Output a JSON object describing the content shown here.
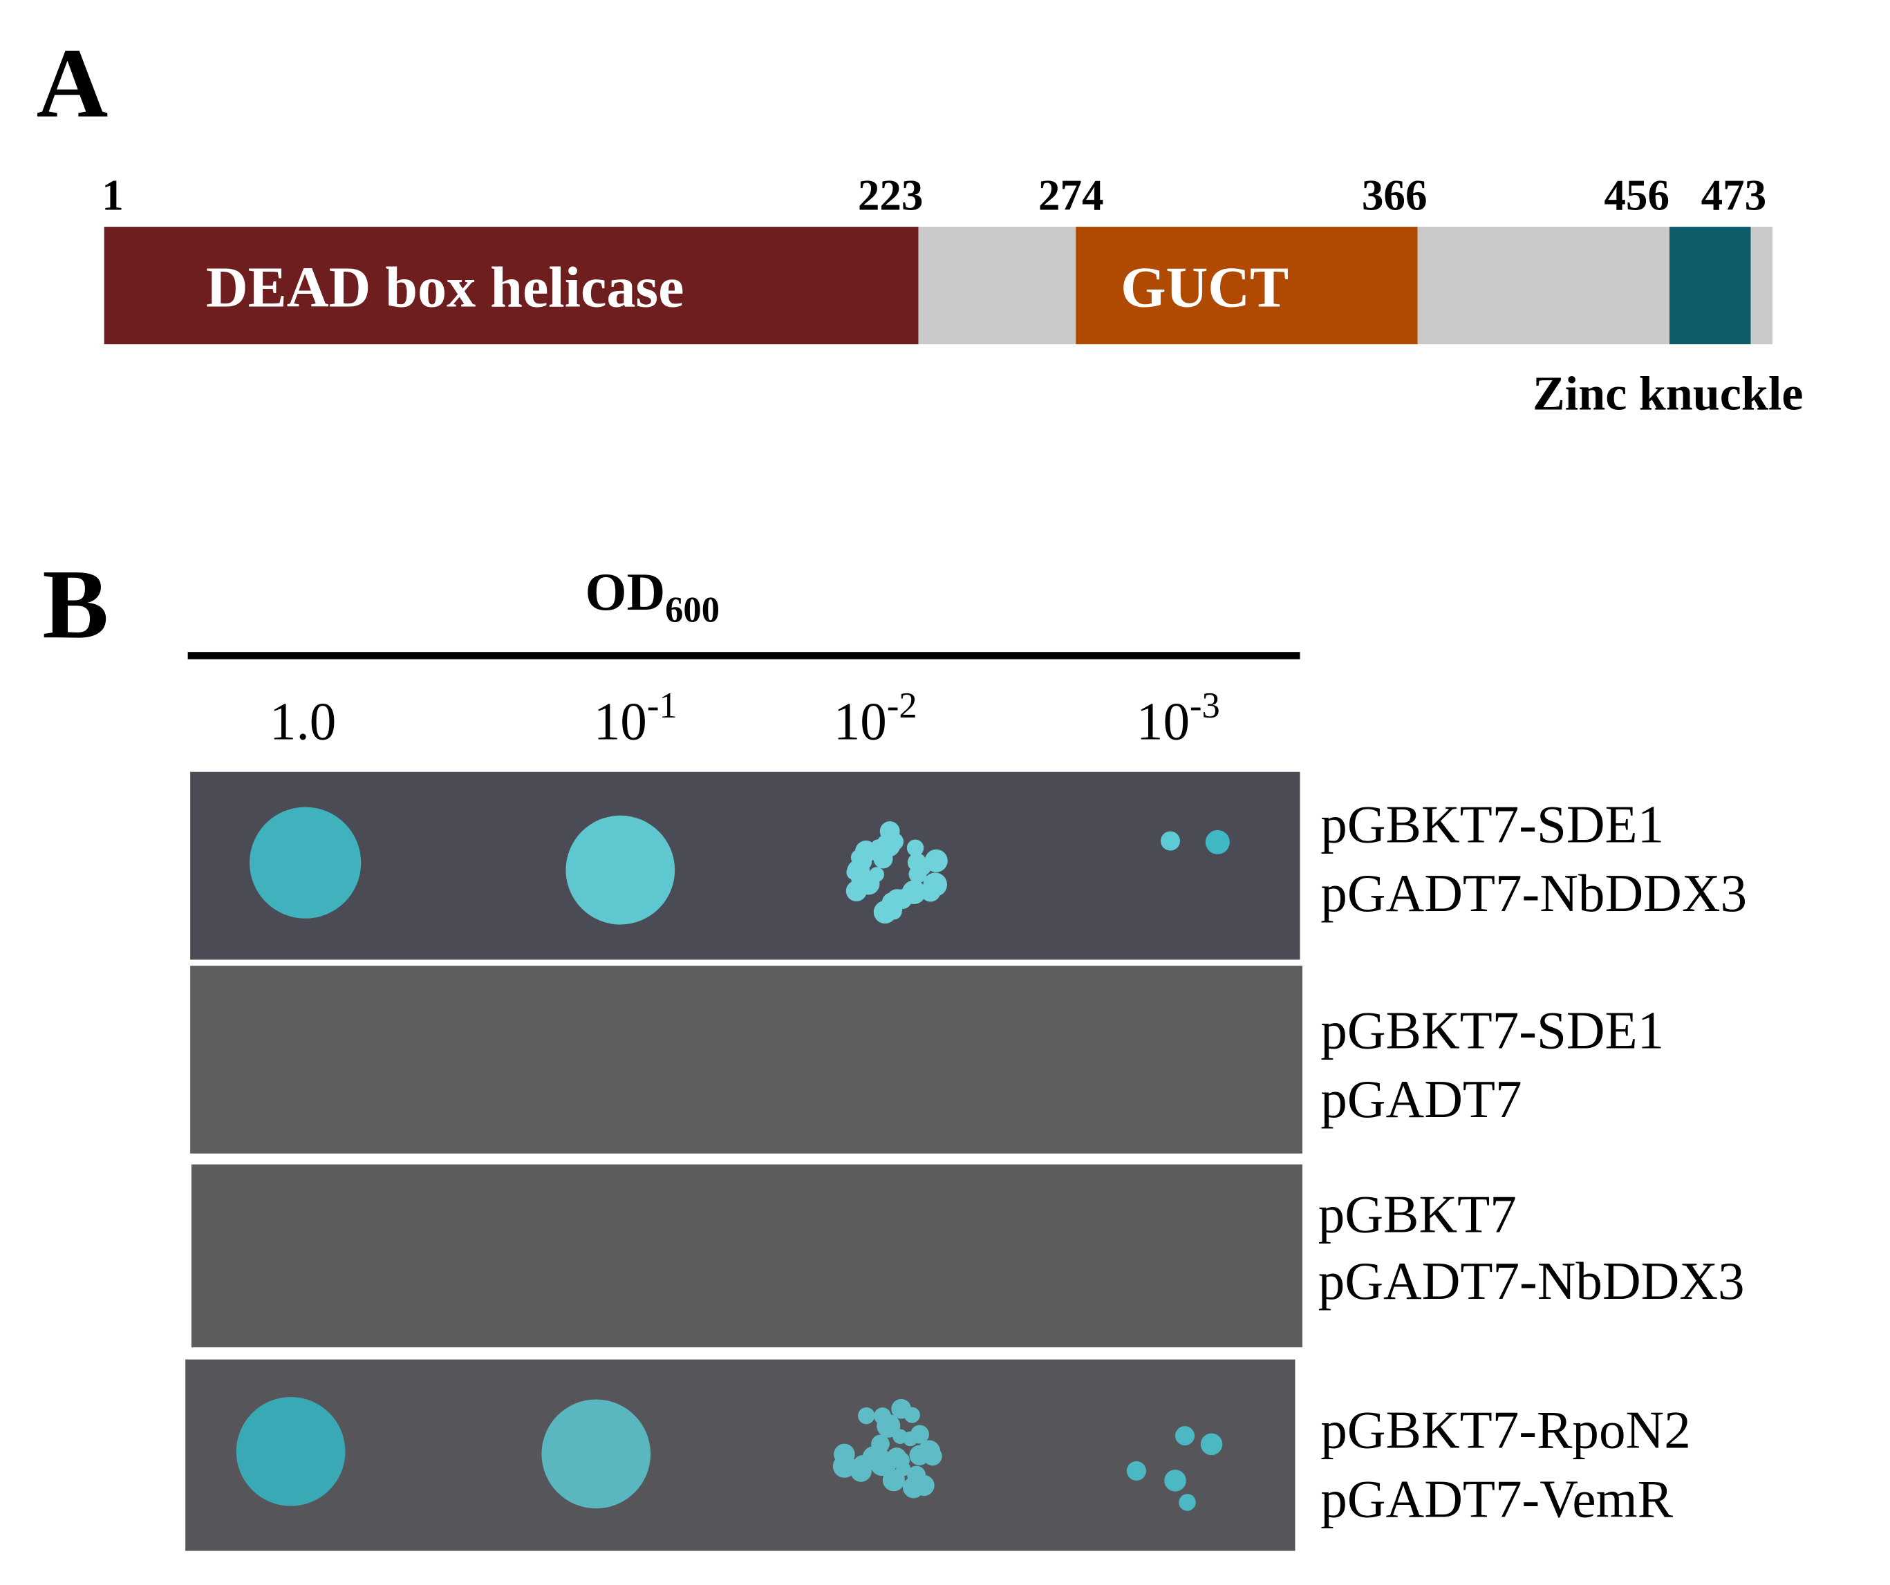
{
  "panel_a": {
    "label": "A",
    "positions": [
      1,
      223,
      274,
      366,
      456,
      473
    ],
    "domains": [
      "DEAD box helicase",
      "GUCT"
    ],
    "zinc_label": "Zinc knuckle"
  },
  "panel_b": {
    "label": "B",
    "od_header": {
      "text": "OD",
      "subscript": "600"
    },
    "dilutions": [
      "1.0",
      {
        "base": "10",
        "exponent": "-1"
      },
      {
        "base": "10",
        "exponent": "-2"
      },
      {
        "base": "10",
        "exponent": "-3"
      }
    ],
    "rows": [
      [
        "pGBKT7-SDE1",
        "pGADT7-NbDDX3"
      ],
      [
        "pGBKT7-SDE1",
        "pGADT7"
      ],
      [
        "pGBKT7",
        "pGADT7-NbDDX3"
      ],
      [
        "pGBKT7-RpoN2",
        "pGADT7-VemR"
      ]
    ]
  }
}
